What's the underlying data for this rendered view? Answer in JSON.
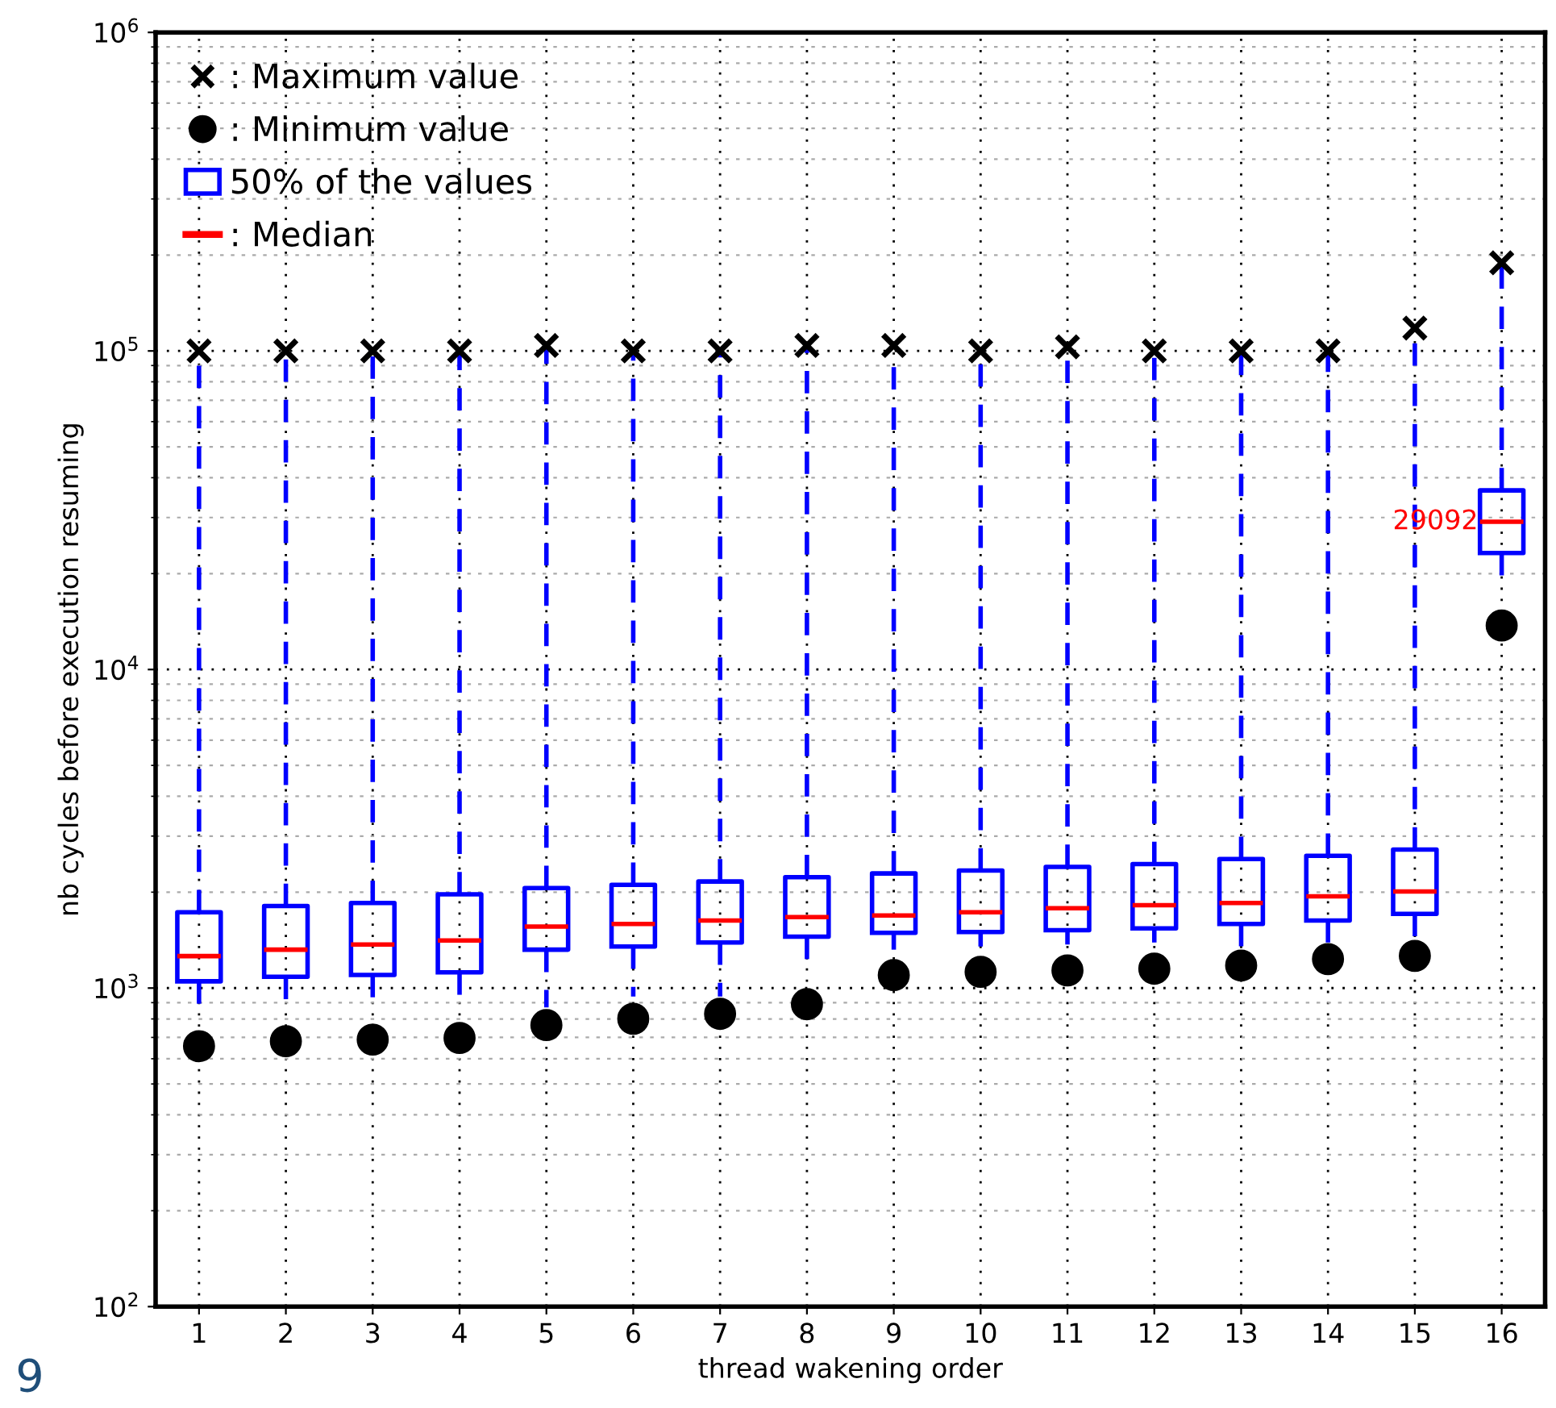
{
  "chart_data": {
    "type": "box",
    "xlabel": "thread wakening order",
    "ylabel": "nb cycles before execution resuming",
    "categories": [
      "1",
      "2",
      "3",
      "4",
      "5",
      "6",
      "7",
      "8",
      "9",
      "10",
      "11",
      "12",
      "13",
      "14",
      "15",
      "16"
    ],
    "log": "y",
    "ylim": [
      100,
      1000000
    ],
    "yticks": [
      {
        "value": 100,
        "label": "10$^{2}$"
      },
      {
        "value": 1000,
        "label": "10$^{3}$"
      },
      {
        "value": 10000,
        "label": "10$^{4}$"
      },
      {
        "value": 100000,
        "label": "10$^{5}$"
      },
      {
        "value": 1000000,
        "label": "10$^{6}$"
      }
    ],
    "grid": true,
    "legend": "top left",
    "series": [
      {
        "name": "50% of the values",
        "color": "#0000ff",
        "line_style": "dashed",
        "boxes": [
          {
            "low": 880,
            "q1": 1050,
            "median": 1260,
            "q3": 1730,
            "high": 100000
          },
          {
            "low": 900,
            "q1": 1085,
            "median": 1320,
            "q3": 1810,
            "high": 100000
          },
          {
            "low": 910,
            "q1": 1100,
            "median": 1370,
            "q3": 1850,
            "high": 100000
          },
          {
            "low": 940,
            "q1": 1120,
            "median": 1410,
            "q3": 1970,
            "high": 100000
          },
          {
            "low": 870,
            "q1": 1320,
            "median": 1560,
            "q3": 2060,
            "high": 104000
          },
          {
            "low": 940,
            "q1": 1350,
            "median": 1590,
            "q3": 2110,
            "high": 100000
          },
          {
            "low": 940,
            "q1": 1390,
            "median": 1630,
            "q3": 2160,
            "high": 100000
          },
          {
            "low": 1200,
            "q1": 1450,
            "median": 1670,
            "q3": 2230,
            "high": 104000
          },
          {
            "low": 1320,
            "q1": 1490,
            "median": 1690,
            "q3": 2290,
            "high": 104000
          },
          {
            "low": 1350,
            "q1": 1500,
            "median": 1730,
            "q3": 2340,
            "high": 100000
          },
          {
            "low": 1370,
            "q1": 1520,
            "median": 1780,
            "q3": 2400,
            "high": 103000
          },
          {
            "low": 1390,
            "q1": 1540,
            "median": 1820,
            "q3": 2450,
            "high": 100000
          },
          {
            "low": 1310,
            "q1": 1590,
            "median": 1850,
            "q3": 2540,
            "high": 100000
          },
          {
            "low": 1390,
            "q1": 1630,
            "median": 1940,
            "q3": 2600,
            "high": 100000
          },
          {
            "low": 1440,
            "q1": 1710,
            "median": 2010,
            "q3": 2720,
            "high": 118000
          },
          {
            "low": 19500,
            "q1": 23200,
            "median": 29092,
            "q3": 36500,
            "high": 189000
          }
        ]
      },
      {
        "type": "scatter",
        "name": ": Maximum value",
        "color": "#000000",
        "marker": "cross",
        "x": [
          "1",
          "2",
          "3",
          "4",
          "5",
          "6",
          "7",
          "8",
          "9",
          "10",
          "11",
          "12",
          "13",
          "14",
          "15",
          "16"
        ],
        "values": [
          100000,
          100000,
          100000,
          100000,
          104000,
          100000,
          100000,
          104000,
          104000,
          100000,
          103000,
          100000,
          100000,
          100000,
          118000,
          189000
        ]
      },
      {
        "type": "scatter",
        "name": ": Minimum value",
        "color": "#000000",
        "marker": "circle",
        "x": [
          "1",
          "2",
          "3",
          "4",
          "5",
          "6",
          "7",
          "8",
          "9",
          "10",
          "11",
          "12",
          "13",
          "14",
          "15",
          "16"
        ],
        "values": [
          657,
          681,
          689,
          697,
          765,
          801,
          830,
          890,
          1098,
          1124,
          1136,
          1150,
          1177,
          1233,
          1262,
          13740
        ]
      }
    ],
    "annotations": [
      ": Median",
      "9",
      {
        "text": "29092",
        "x": "16",
        "y": 29092
      }
    ]
  }
}
